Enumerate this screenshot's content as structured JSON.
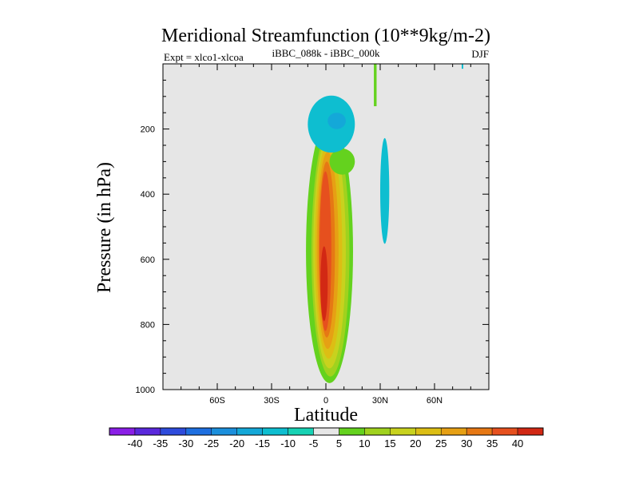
{
  "chart_data": {
    "type": "contour",
    "title": "Meridional Streamfunction (10**9kg/m-2)",
    "subtitle_left": "Expt = xlco1-xlcoa",
    "subtitle_center": "iBBC_088k - iBBC_000k",
    "subtitle_right": "DJF",
    "xlabel": "Latitude",
    "ylabel": "Pressure (in hPa)",
    "xlim": [
      -90,
      90
    ],
    "ylim": [
      1000,
      0
    ],
    "x_ticks": [
      {
        "value": -60,
        "label": "60S"
      },
      {
        "value": -30,
        "label": "30S"
      },
      {
        "value": 0,
        "label": "0"
      },
      {
        "value": 30,
        "label": "30N"
      },
      {
        "value": 60,
        "label": "60N"
      }
    ],
    "y_ticks": [
      {
        "value": 200,
        "label": "200"
      },
      {
        "value": 400,
        "label": "400"
      },
      {
        "value": 600,
        "label": "600"
      },
      {
        "value": 800,
        "label": "800"
      },
      {
        "value": 1000,
        "label": "1000"
      }
    ],
    "x_minor_step": 10,
    "y_minor_step": 50,
    "background_color": "#e6e6e6",
    "colorbar": {
      "labels": [
        "-40",
        "-35",
        "-30",
        "-25",
        "-20",
        "-15",
        "-10",
        "-5",
        "5",
        "10",
        "15",
        "20",
        "25",
        "30",
        "35",
        "40"
      ],
      "colors": [
        "#8a1ee6",
        "#5a28dc",
        "#2e4bdc",
        "#1e6fe0",
        "#1b8fdc",
        "#14a8d8",
        "#0ebed0",
        "#17d2b4",
        "#e6e6e6",
        "#64d21e",
        "#a0d21e",
        "#c8d21e",
        "#dcbe14",
        "#e6a014",
        "#e67814",
        "#e6501e",
        "#d22814"
      ]
    },
    "features": [
      {
        "name": "positive-cell",
        "center_lat": -1,
        "center_p": 660,
        "max_level": 40,
        "lat_range": [
          -11,
          15
        ],
        "p_range": [
          170,
          980
        ]
      },
      {
        "name": "negative-cell-upper",
        "center_lat": 2,
        "center_p": 180,
        "min_level": -10,
        "lat_range": [
          -10,
          16
        ],
        "p_range": [
          95,
          270
        ]
      },
      {
        "name": "negative-cell-30n",
        "center_lat": 32,
        "center_p": 390,
        "min_level": -10,
        "lat_range": [
          30,
          35
        ],
        "p_range": [
          220,
          545
        ]
      },
      {
        "name": "positive-filament-30n",
        "center_lat": 27,
        "center_p": 60,
        "max_level": 5,
        "lat_range": [
          26.5,
          28
        ],
        "p_range": [
          0,
          130
        ]
      }
    ]
  }
}
